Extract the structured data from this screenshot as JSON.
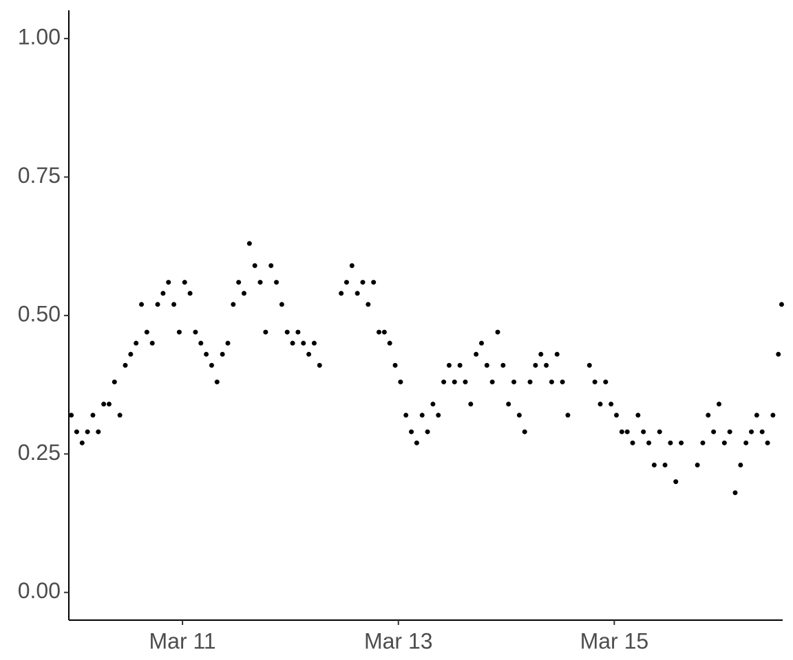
{
  "chart_data": {
    "type": "scatter",
    "color": "#000000",
    "x": [
      9.97,
      10.02,
      10.07,
      10.12,
      10.17,
      10.22,
      10.27,
      10.32,
      10.37,
      10.42,
      10.47,
      10.52,
      10.57,
      10.62,
      10.67,
      10.72,
      10.77,
      10.82,
      10.87,
      10.92,
      10.97,
      11.02,
      11.07,
      11.12,
      11.17,
      11.22,
      11.27,
      11.32,
      11.37,
      11.42,
      11.47,
      11.52,
      11.57,
      11.62,
      11.67,
      11.72,
      11.77,
      11.82,
      11.87,
      11.92,
      11.97,
      12.02,
      12.07,
      12.12,
      12.17,
      12.22,
      12.27,
      12.47,
      12.52,
      12.57,
      12.62,
      12.67,
      12.72,
      12.77,
      12.82,
      12.87,
      12.92,
      12.97,
      13.02,
      13.07,
      13.12,
      13.17,
      13.22,
      13.27,
      13.32,
      13.37,
      13.42,
      13.47,
      13.52,
      13.57,
      13.62,
      13.67,
      13.72,
      13.77,
      13.82,
      13.87,
      13.92,
      13.97,
      14.02,
      14.07,
      14.12,
      14.17,
      14.22,
      14.27,
      14.32,
      14.37,
      14.42,
      14.47,
      14.52,
      14.57,
      14.77,
      14.82,
      14.87,
      14.92,
      14.97,
      15.02,
      15.07,
      15.12,
      15.17,
      15.22,
      15.27,
      15.32,
      15.37,
      15.42,
      15.47,
      15.52,
      15.57,
      15.62,
      15.77,
      15.82,
      15.87,
      15.92,
      15.97,
      16.02,
      16.07,
      16.12,
      16.17,
      16.22,
      16.27,
      16.32,
      16.37,
      16.42,
      16.47,
      16.52,
      16.55
    ],
    "values": [
      0.32,
      0.29,
      0.27,
      0.29,
      0.32,
      0.29,
      0.34,
      0.34,
      0.38,
      0.32,
      0.41,
      0.43,
      0.45,
      0.52,
      0.47,
      0.45,
      0.52,
      0.54,
      0.56,
      0.52,
      0.47,
      0.56,
      0.54,
      0.47,
      0.45,
      0.43,
      0.41,
      0.38,
      0.43,
      0.45,
      0.52,
      0.56,
      0.54,
      0.63,
      0.59,
      0.56,
      0.47,
      0.59,
      0.56,
      0.52,
      0.47,
      0.45,
      0.47,
      0.45,
      0.43,
      0.45,
      0.41,
      0.54,
      0.56,
      0.59,
      0.54,
      0.56,
      0.52,
      0.56,
      0.47,
      0.47,
      0.45,
      0.41,
      0.38,
      0.32,
      0.29,
      0.27,
      0.32,
      0.29,
      0.34,
      0.32,
      0.38,
      0.41,
      0.38,
      0.41,
      0.38,
      0.34,
      0.43,
      0.45,
      0.41,
      0.38,
      0.47,
      0.41,
      0.34,
      0.38,
      0.32,
      0.29,
      0.38,
      0.41,
      0.43,
      0.41,
      0.38,
      0.43,
      0.38,
      0.32,
      0.41,
      0.38,
      0.34,
      0.38,
      0.34,
      0.32,
      0.29,
      0.29,
      0.27,
      0.32,
      0.29,
      0.27,
      0.23,
      0.29,
      0.23,
      0.27,
      0.2,
      0.27,
      0.23,
      0.27,
      0.32,
      0.29,
      0.34,
      0.27,
      0.29,
      0.18,
      0.23,
      0.27,
      0.29,
      0.32,
      0.29,
      0.27,
      0.32,
      0.43,
      0.52
    ],
    "xlim": [
      9.947,
      16.56
    ],
    "xticks": [
      {
        "value": 11,
        "label": "Mar 11"
      },
      {
        "value": 13,
        "label": "Mar 13"
      },
      {
        "value": 15,
        "label": "Mar 15"
      }
    ],
    "ylim": [
      -0.05,
      1.051
    ],
    "yticks": [
      {
        "value": 0,
        "label": "0.00"
      },
      0.25,
      {
        "value": 0.5,
        "label": "0.50"
      },
      0.75,
      {
        "value": 1,
        "label": "1.00"
      }
    ]
  }
}
